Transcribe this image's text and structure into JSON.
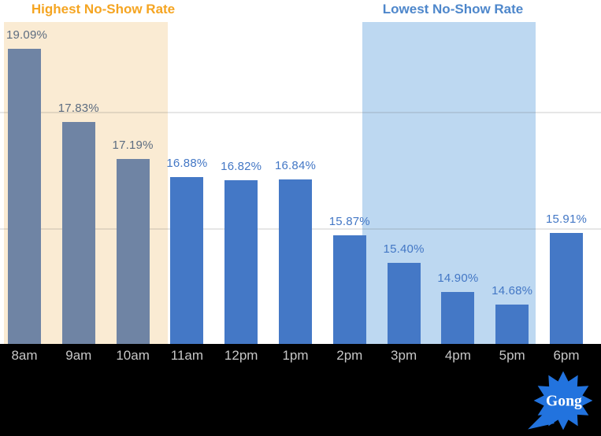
{
  "chart_data": {
    "type": "bar",
    "title": "",
    "xlabel": "",
    "ylabel": "",
    "categories": [
      "8am",
      "9am",
      "10am",
      "11am",
      "12pm",
      "1pm",
      "2pm",
      "3pm",
      "4pm",
      "5pm",
      "6pm"
    ],
    "values": [
      19.09,
      17.83,
      17.19,
      16.88,
      16.82,
      16.84,
      15.87,
      15.4,
      14.9,
      14.68,
      15.91
    ],
    "value_labels": [
      "19.09%",
      "17.83%",
      "17.19%",
      "16.88%",
      "16.82%",
      "16.84%",
      "15.87%",
      "15.40%",
      "14.90%",
      "14.68%",
      "15.91%"
    ],
    "bar_groups": [
      "muted",
      "muted",
      "muted",
      "primary",
      "primary",
      "primary",
      "primary",
      "primary",
      "primary",
      "primary",
      "primary"
    ],
    "bar_colors": {
      "muted": "#6F84A4",
      "primary": "#4478C6"
    },
    "value_label_colors": {
      "muted": "#5C6C80",
      "primary": "#4377C5"
    },
    "ylim": [
      14,
      20
    ],
    "gridline_values": [
      16,
      18
    ],
    "grid": true,
    "legend": "none",
    "regions": [
      {
        "label": "Highest No-Show Rate",
        "label_color": "#F5A522",
        "fill": "#FAEBD3",
        "from": "8am",
        "to": "10am"
      },
      {
        "label": "Lowest No-Show Rate",
        "label_color": "#4E87CB",
        "fill": "#BDD8F1",
        "from": "3pm",
        "to": "5pm"
      }
    ],
    "x_axis": {
      "label_color": "#C7C7C7",
      "background": "#000000"
    }
  },
  "footer": {
    "brand": "Gong",
    "brand_color": "#2273DE",
    "brand_text_color": "#FFFFFF"
  }
}
